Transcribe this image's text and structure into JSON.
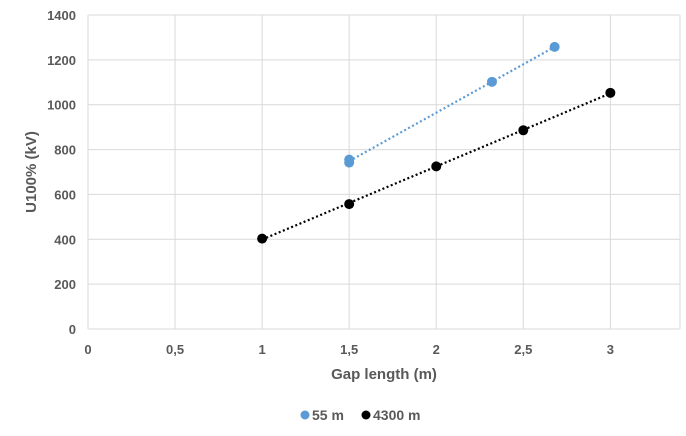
{
  "chart_data": {
    "type": "scatter",
    "title": "",
    "xlabel": "Gap length (m)",
    "ylabel": "U100% (kV)",
    "xlim": [
      0,
      3.4
    ],
    "ylim": [
      0,
      1400
    ],
    "xticks": [
      0,
      0.5,
      1,
      1.5,
      2,
      2.5,
      3
    ],
    "xtick_labels": [
      "0",
      "0,5",
      "1",
      "1,5",
      "2",
      "2,5",
      "3"
    ],
    "yticks": [
      0,
      200,
      400,
      600,
      800,
      1000,
      1200,
      1400
    ],
    "ytick_labels": [
      "0",
      "200",
      "400",
      "600",
      "800",
      "1000",
      "1200",
      "1400"
    ],
    "grid": true,
    "legend_position": "bottom",
    "series": [
      {
        "name": "55 m",
        "color": "#5b9bd5",
        "trendline": "dotted linear",
        "x": [
          1.5,
          1.5,
          2.32,
          2.68
        ],
        "y": [
          755,
          742,
          1102,
          1258
        ]
      },
      {
        "name": "4300 m",
        "color": "#000000",
        "trendline": "dotted linear",
        "x": [
          1,
          1.5,
          2,
          2.5,
          3
        ],
        "y": [
          403,
          557,
          725,
          886,
          1053
        ]
      }
    ]
  }
}
